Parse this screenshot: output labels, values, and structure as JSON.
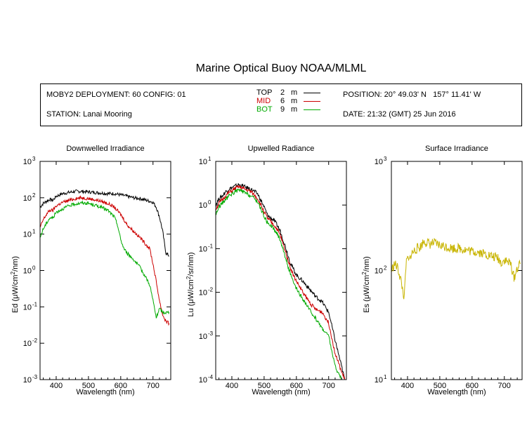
{
  "title": "Marine Optical Buoy NOAA/MLML",
  "info": {
    "deployment": "MOBY2 DEPLOYMENT: 60 CONFIG: 01",
    "station": "STATION: Lanai Mooring",
    "position": "POSITION: 20° 49.03' N   157° 11.41' W",
    "date": "DATE: 21:32 (GMT) 25 Jun 2016"
  },
  "legend": [
    {
      "name": "TOP",
      "depth": "2",
      "unit": "m",
      "color": "#000000"
    },
    {
      "name": "MID",
      "depth": "6",
      "unit": "m",
      "color": "#cc0000"
    },
    {
      "name": "BOT",
      "depth": "9",
      "unit": "m",
      "color": "#00aa00"
    }
  ],
  "chart_data": [
    {
      "type": "line",
      "title": "Downwelled Irradiance",
      "xlabel": "Wavelength (nm)",
      "ylabel_main": "Ed  (μW/cm",
      "ylabel_sup": "2",
      "ylabel_end": "/nm)",
      "xlim": [
        350,
        755
      ],
      "ylim": [
        0.001,
        1000
      ],
      "yscale": "log",
      "xticks": [
        400,
        500,
        600,
        700
      ],
      "yticks": [
        0.001,
        0.01,
        0.1,
        1,
        10,
        100,
        1000
      ],
      "yticklabels": [
        [
          "10",
          "-3"
        ],
        [
          "10",
          "-2"
        ],
        [
          "10",
          "-1"
        ],
        [
          "10",
          "0"
        ],
        [
          "10",
          "1"
        ],
        [
          "10",
          "2"
        ],
        [
          "10",
          "3"
        ]
      ],
      "series": [
        {
          "name": "TOP",
          "color": "#000000",
          "x": [
            350,
            360,
            370,
            380,
            390,
            400,
            420,
            440,
            460,
            480,
            500,
            520,
            540,
            560,
            580,
            600,
            620,
            640,
            660,
            680,
            690,
            700,
            710,
            720,
            730,
            740,
            750
          ],
          "y": [
            55,
            70,
            80,
            90,
            85,
            110,
            130,
            140,
            150,
            150,
            145,
            140,
            135,
            130,
            130,
            120,
            110,
            100,
            95,
            85,
            80,
            75,
            55,
            30,
            12,
            3,
            2.5
          ]
        },
        {
          "name": "MID",
          "color": "#cc0000",
          "x": [
            350,
            360,
            370,
            380,
            390,
            400,
            420,
            440,
            460,
            480,
            500,
            520,
            540,
            560,
            580,
            600,
            610,
            620,
            640,
            660,
            680,
            690,
            700,
            710,
            720,
            730,
            740,
            750
          ],
          "y": [
            15,
            25,
            35,
            45,
            45,
            60,
            75,
            85,
            95,
            100,
            95,
            88,
            80,
            70,
            55,
            35,
            25,
            18,
            12,
            8,
            5,
            4,
            1.5,
            0.5,
            0.15,
            0.06,
            0.04,
            0.035
          ]
        },
        {
          "name": "BOT",
          "color": "#00aa00",
          "x": [
            350,
            360,
            370,
            380,
            390,
            400,
            420,
            440,
            460,
            480,
            500,
            520,
            540,
            560,
            580,
            590,
            600,
            610,
            620,
            640,
            660,
            680,
            690,
            700,
            710,
            720,
            730,
            740,
            750
          ],
          "y": [
            8,
            14,
            20,
            28,
            28,
            40,
            50,
            60,
            68,
            72,
            70,
            62,
            55,
            45,
            30,
            18,
            7,
            4,
            3,
            2,
            1.2,
            0.6,
            0.4,
            0.15,
            0.05,
            0.09,
            0.07,
            0.07,
            0.07
          ]
        }
      ]
    },
    {
      "type": "line",
      "title": "Upwelled Radiance",
      "xlabel": "Wavelength (nm)",
      "ylabel_main": "Lu  (μW/cm",
      "ylabel_sup": "2",
      "ylabel_end": "/sr/nm)",
      "xlim": [
        350,
        755
      ],
      "ylim": [
        0.0001,
        10
      ],
      "yscale": "log",
      "xticks": [
        400,
        500,
        600,
        700
      ],
      "yticks": [
        0.0001,
        0.001,
        0.01,
        0.1,
        1,
        10
      ],
      "yticklabels": [
        [
          "10",
          "-4"
        ],
        [
          "10",
          "-3"
        ],
        [
          "10",
          "-2"
        ],
        [
          "10",
          "-1"
        ],
        [
          "10",
          "0"
        ],
        [
          "10",
          "1"
        ]
      ],
      "series": [
        {
          "name": "TOP",
          "color": "#000000",
          "x": [
            350,
            360,
            370,
            380,
            390,
            400,
            410,
            420,
            430,
            440,
            460,
            480,
            500,
            510,
            520,
            530,
            540,
            550,
            560,
            570,
            580,
            590,
            600,
            620,
            640,
            660,
            680,
            700,
            720,
            740,
            750
          ],
          "y": [
            1.0,
            1.4,
            1.6,
            2.0,
            2.3,
            2.5,
            2.7,
            2.9,
            2.8,
            2.6,
            2.3,
            1.8,
            0.9,
            0.6,
            0.5,
            0.45,
            0.35,
            0.25,
            0.15,
            0.09,
            0.05,
            0.035,
            0.025,
            0.018,
            0.012,
            0.008,
            0.006,
            0.0035,
            0.0008,
            0.0002,
            0.0001
          ]
        },
        {
          "name": "MID",
          "color": "#cc0000",
          "x": [
            350,
            360,
            370,
            380,
            390,
            400,
            410,
            420,
            430,
            440,
            460,
            480,
            500,
            510,
            520,
            530,
            540,
            550,
            560,
            570,
            580,
            590,
            600,
            620,
            640,
            660,
            680,
            700,
            720,
            740,
            750
          ],
          "y": [
            0.8,
            1.1,
            1.3,
            1.6,
            1.9,
            2.1,
            2.4,
            2.6,
            2.5,
            2.3,
            2.0,
            1.4,
            0.7,
            0.5,
            0.42,
            0.35,
            0.28,
            0.2,
            0.12,
            0.07,
            0.04,
            0.025,
            0.018,
            0.01,
            0.006,
            0.004,
            0.0035,
            0.002,
            0.0004,
            0.00015,
            0.0001
          ]
        },
        {
          "name": "BOT",
          "color": "#00aa00",
          "x": [
            350,
            360,
            370,
            380,
            390,
            400,
            410,
            420,
            430,
            440,
            460,
            480,
            500,
            510,
            520,
            530,
            540,
            550,
            560,
            570,
            580,
            590,
            600,
            610,
            620,
            640,
            660,
            680,
            700,
            720,
            740
          ],
          "y": [
            0.6,
            0.9,
            1.1,
            1.3,
            1.6,
            1.8,
            2.0,
            2.2,
            2.1,
            1.9,
            1.6,
            1.2,
            0.55,
            0.4,
            0.35,
            0.28,
            0.22,
            0.16,
            0.09,
            0.05,
            0.028,
            0.017,
            0.012,
            0.009,
            0.007,
            0.004,
            0.0025,
            0.0015,
            0.001,
            0.0002,
            0.0001
          ]
        }
      ]
    },
    {
      "type": "line",
      "title": "Surface Irradiance",
      "xlabel": "Wavelength (nm)",
      "ylabel_main": "Es  (μW/cm",
      "ylabel_sup": "2",
      "ylabel_end": "/nm)",
      "xlim": [
        350,
        755
      ],
      "ylim": [
        10,
        1000
      ],
      "yscale": "log",
      "xticks": [
        400,
        500,
        600,
        700
      ],
      "yticks": [
        10,
        100,
        1000
      ],
      "yticklabels": [
        [
          "10",
          "1"
        ],
        [
          "10",
          "2"
        ],
        [
          "10",
          "3"
        ]
      ],
      "series": [
        {
          "name": "Es",
          "color": "#c8b400",
          "x": [
            350,
            360,
            370,
            380,
            390,
            395,
            400,
            405,
            410,
            420,
            430,
            440,
            450,
            460,
            470,
            480,
            500,
            520,
            540,
            560,
            580,
            600,
            620,
            640,
            660,
            680,
            690,
            700,
            710,
            720,
            730,
            740,
            750
          ],
          "y": [
            100,
            115,
            105,
            80,
            55,
            110,
            130,
            120,
            140,
            150,
            160,
            165,
            185,
            180,
            175,
            178,
            170,
            165,
            160,
            160,
            155,
            150,
            148,
            142,
            135,
            130,
            118,
            125,
            120,
            115,
            85,
            105,
            115
          ]
        }
      ]
    }
  ]
}
